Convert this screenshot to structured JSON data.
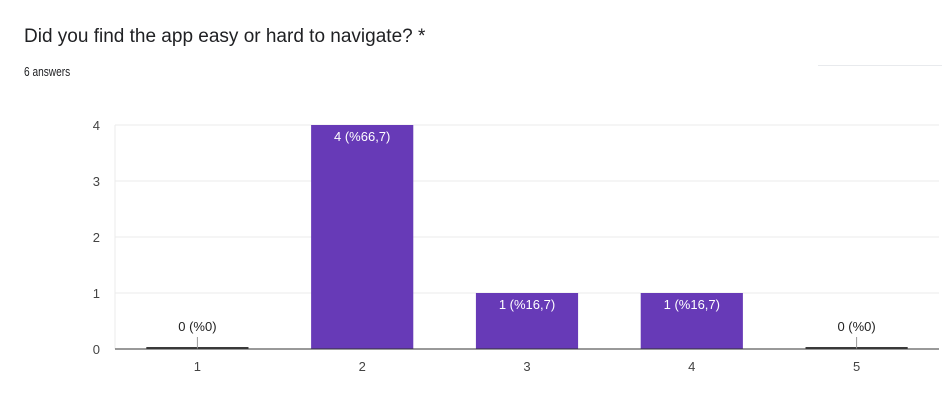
{
  "question": {
    "title": "Did you find the app easy or hard to navigate? *",
    "answer_count": "6 answers"
  },
  "chart_data": {
    "type": "bar",
    "categories": [
      "1",
      "2",
      "3",
      "4",
      "5"
    ],
    "values": [
      0,
      4,
      1,
      1,
      0
    ],
    "data_labels": [
      "0 (%0)",
      "4 (%66,7)",
      "1 (%16,7)",
      "1 (%16,7)",
      "0 (%0)"
    ],
    "title": "",
    "xlabel": "",
    "ylabel": "",
    "ylim": [
      0,
      4
    ],
    "yticks": [
      "0",
      "1",
      "2",
      "3",
      "4"
    ],
    "grid": true,
    "bar_color": "#673ab7"
  }
}
